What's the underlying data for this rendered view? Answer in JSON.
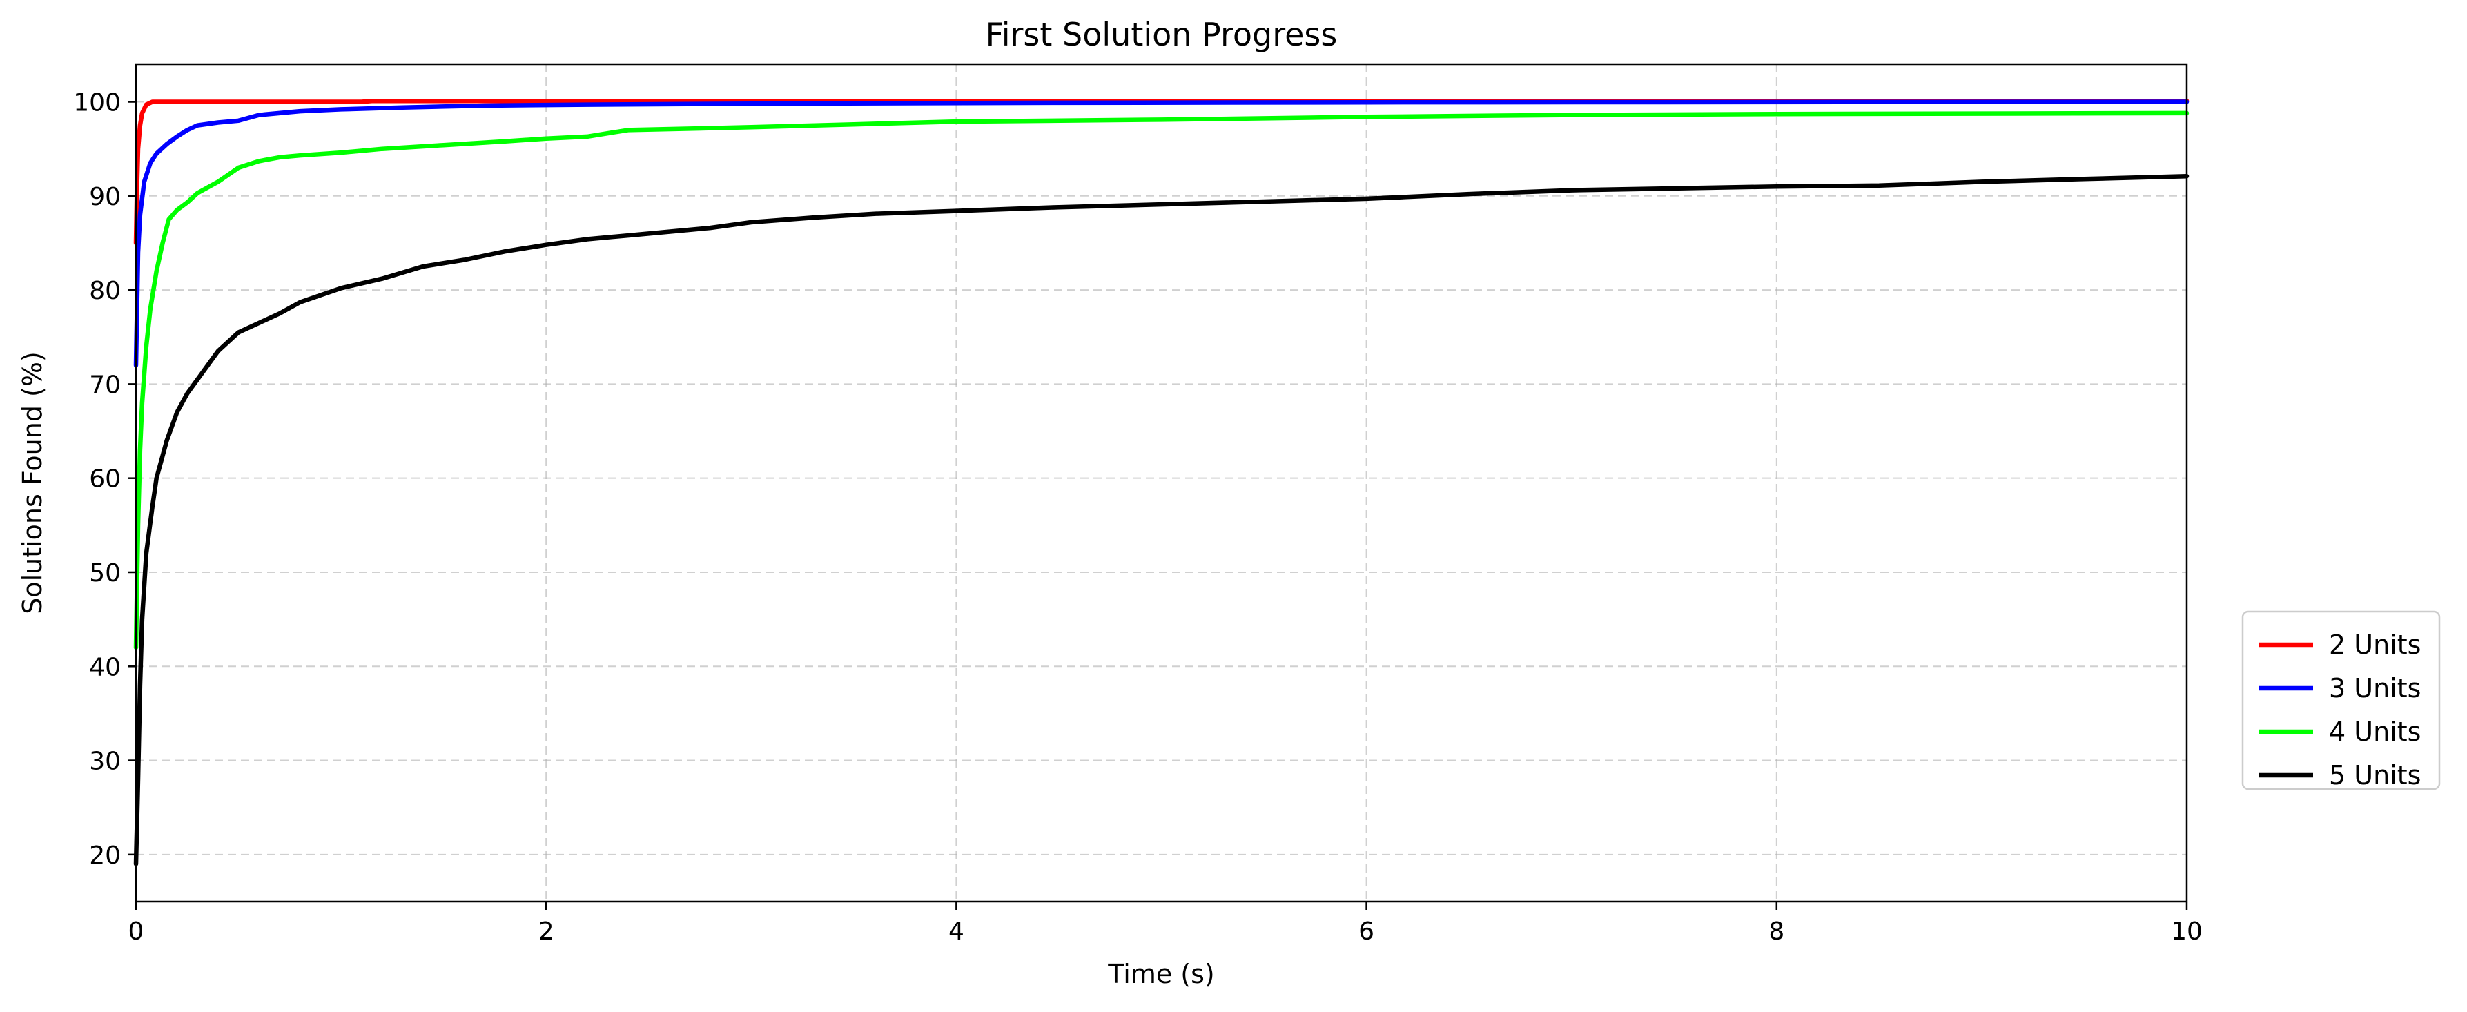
{
  "chart_data": {
    "type": "line",
    "title": "First Solution Progress",
    "xlabel": "Time (s)",
    "ylabel": "Solutions Found (%)",
    "xlim": [
      0,
      10
    ],
    "ylim": [
      15,
      104
    ],
    "xticks": [
      0,
      2,
      4,
      6,
      8,
      10
    ],
    "yticks": [
      20,
      30,
      40,
      50,
      60,
      70,
      80,
      90,
      100
    ],
    "grid": true,
    "legend_position": "right",
    "series": [
      {
        "name": "2 Units",
        "color": "#ff0000",
        "points": [
          [
            0,
            85
          ],
          [
            0.005,
            91
          ],
          [
            0.01,
            95
          ],
          [
            0.02,
            97.5
          ],
          [
            0.03,
            98.8
          ],
          [
            0.05,
            99.7
          ],
          [
            0.08,
            100
          ],
          [
            1.1,
            100
          ],
          [
            1.15,
            100.1
          ],
          [
            10,
            100.1
          ]
        ]
      },
      {
        "name": "3 Units",
        "color": "#0000ff",
        "points": [
          [
            0,
            72
          ],
          [
            0.01,
            84
          ],
          [
            0.02,
            88
          ],
          [
            0.04,
            91.5
          ],
          [
            0.07,
            93.5
          ],
          [
            0.1,
            94.5
          ],
          [
            0.15,
            95.5
          ],
          [
            0.2,
            96.3
          ],
          [
            0.25,
            97
          ],
          [
            0.3,
            97.5
          ],
          [
            0.4,
            97.8
          ],
          [
            0.5,
            98
          ],
          [
            0.6,
            98.6
          ],
          [
            0.8,
            99
          ],
          [
            1.0,
            99.2
          ],
          [
            1.3,
            99.4
          ],
          [
            1.7,
            99.6
          ],
          [
            2.2,
            99.7
          ],
          [
            3,
            99.8
          ],
          [
            4.5,
            99.9
          ],
          [
            6,
            99.95
          ],
          [
            10,
            100
          ]
        ]
      },
      {
        "name": "4 Units",
        "color": "#00ff00",
        "points": [
          [
            0,
            42
          ],
          [
            0.01,
            55
          ],
          [
            0.02,
            63
          ],
          [
            0.03,
            68
          ],
          [
            0.05,
            74
          ],
          [
            0.07,
            78
          ],
          [
            0.1,
            82
          ],
          [
            0.13,
            85
          ],
          [
            0.16,
            87.5
          ],
          [
            0.2,
            88.5
          ],
          [
            0.25,
            89.3
          ],
          [
            0.3,
            90.3
          ],
          [
            0.4,
            91.5
          ],
          [
            0.5,
            93
          ],
          [
            0.6,
            93.7
          ],
          [
            0.7,
            94.1
          ],
          [
            0.8,
            94.3
          ],
          [
            1.0,
            94.6
          ],
          [
            1.2,
            95
          ],
          [
            1.5,
            95.4
          ],
          [
            1.8,
            95.8
          ],
          [
            2.0,
            96.1
          ],
          [
            2.2,
            96.3
          ],
          [
            2.4,
            97
          ],
          [
            3.0,
            97.3
          ],
          [
            3.5,
            97.6
          ],
          [
            4.0,
            97.9
          ],
          [
            5.0,
            98.1
          ],
          [
            6.0,
            98.4
          ],
          [
            7.0,
            98.6
          ],
          [
            8.0,
            98.7
          ],
          [
            10,
            98.8
          ]
        ]
      },
      {
        "name": "5 Units",
        "color": "#000000",
        "points": [
          [
            0,
            19
          ],
          [
            0.01,
            28
          ],
          [
            0.02,
            38
          ],
          [
            0.03,
            45
          ],
          [
            0.05,
            52
          ],
          [
            0.08,
            57
          ],
          [
            0.1,
            60
          ],
          [
            0.15,
            64
          ],
          [
            0.2,
            67
          ],
          [
            0.25,
            69
          ],
          [
            0.3,
            70.5
          ],
          [
            0.35,
            72
          ],
          [
            0.4,
            73.5
          ],
          [
            0.5,
            75.5
          ],
          [
            0.6,
            76.5
          ],
          [
            0.7,
            77.5
          ],
          [
            0.8,
            78.7
          ],
          [
            1.0,
            80.2
          ],
          [
            1.2,
            81.2
          ],
          [
            1.4,
            82.5
          ],
          [
            1.6,
            83.2
          ],
          [
            1.8,
            84.1
          ],
          [
            2.0,
            84.8
          ],
          [
            2.2,
            85.4
          ],
          [
            2.4,
            85.8
          ],
          [
            2.6,
            86.2
          ],
          [
            2.8,
            86.6
          ],
          [
            3.0,
            87.2
          ],
          [
            3.3,
            87.7
          ],
          [
            3.6,
            88.1
          ],
          [
            4.0,
            88.4
          ],
          [
            4.5,
            88.8
          ],
          [
            5.0,
            89.1
          ],
          [
            5.5,
            89.4
          ],
          [
            6.0,
            89.7
          ],
          [
            6.5,
            90.2
          ],
          [
            7.0,
            90.6
          ],
          [
            7.5,
            90.8
          ],
          [
            8.0,
            91.0
          ],
          [
            8.5,
            91.1
          ],
          [
            9.0,
            91.5
          ],
          [
            9.5,
            91.8
          ],
          [
            10,
            92.1
          ]
        ]
      }
    ]
  }
}
